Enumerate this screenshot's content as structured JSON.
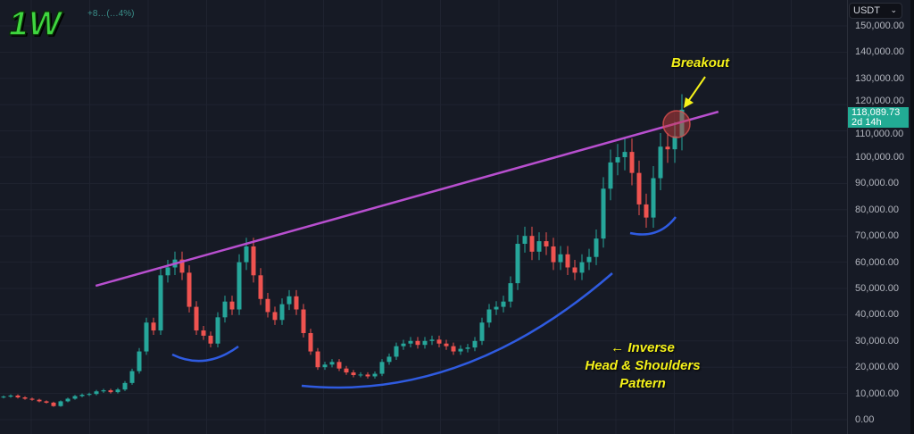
{
  "header": {
    "timeframe": "1W",
    "change_text": "+8…(…4%)"
  },
  "axis": {
    "currency": "USDT",
    "ticks": [
      "150,000.00",
      "140,000.00",
      "130,000.00",
      "120,000.00",
      "110,000.00",
      "100,000.00",
      "90,000.00",
      "80,000.00",
      "70,000.00",
      "60,000.00",
      "50,000.00",
      "40,000.00",
      "30,000.00",
      "20,000.00",
      "10,000.00",
      "0.00"
    ],
    "last_price": "118,089.73",
    "countdown": "2d 14h"
  },
  "colors": {
    "background": "#161a25",
    "up": "#26a69a",
    "down": "#ef5350",
    "trendline": "#b84fcf",
    "pattern_curves": "#2f5be0",
    "annotation": "#f5f21a",
    "price_label": "#22ab94"
  },
  "annotations": {
    "breakout": "Breakout",
    "pattern_arrow": "←",
    "pattern_line1": "Inverse",
    "pattern_line2": "Head & Shoulders",
    "pattern_line3": "Pattern"
  },
  "chart_data": {
    "type": "candlestick",
    "interval": "1W",
    "ylim": [
      0,
      150000
    ],
    "grid": true,
    "closes": [
      8800,
      9200,
      8500,
      8000,
      7600,
      7000,
      6500,
      5200,
      7000,
      8000,
      9000,
      9500,
      9800,
      10800,
      11200,
      10500,
      11500,
      14000,
      18500,
      26000,
      37000,
      34000,
      55000,
      58000,
      61000,
      56000,
      43000,
      34000,
      32000,
      29000,
      39000,
      45000,
      42000,
      60000,
      66000,
      55000,
      46000,
      41000,
      38000,
      44000,
      47000,
      42000,
      33000,
      26000,
      20000,
      21000,
      22000,
      19500,
      18000,
      17000,
      17200,
      16500,
      17500,
      22000,
      24000,
      28000,
      29000,
      30000,
      28500,
      30000,
      30500,
      29000,
      28000,
      26000,
      27000,
      27500,
      30000,
      37000,
      42000,
      43000,
      45000,
      52000,
      67000,
      70000,
      64000,
      68000,
      66000,
      60000,
      63000,
      58000,
      56000,
      60000,
      62000,
      69000,
      88000,
      98000,
      100000,
      102000,
      94000,
      82000,
      77000,
      92000,
      104000,
      103000,
      108000,
      118089.73
    ],
    "trendline": {
      "from": {
        "index": 12.9,
        "price": 51000
      },
      "to": {
        "index": 100.1,
        "price": 117300
      }
    },
    "pattern": "inverse head and shoulders"
  }
}
